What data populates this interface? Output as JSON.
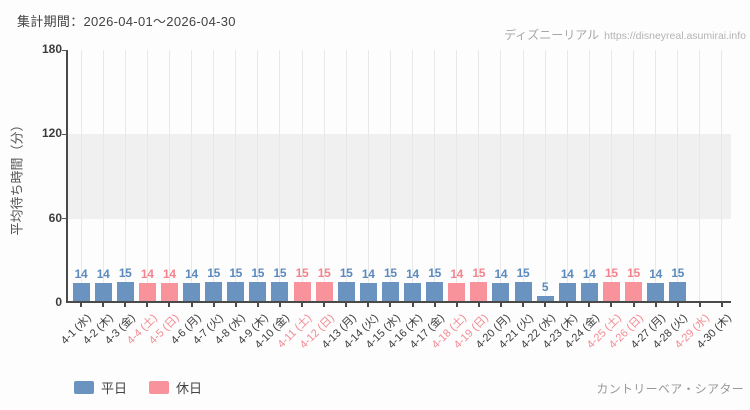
{
  "header": {
    "title": "集計期間：2026-04-01～2026-04-30",
    "site_name": "ディズニーリアル",
    "site_url": "https://disneyreal.asumirai.info"
  },
  "footer": {
    "attraction_name": "カントリーベア・シアター"
  },
  "chart_data": {
    "type": "bar",
    "title": "集計期間：2026-04-01～2026-04-30",
    "xlabel": "",
    "ylabel": "平均待ち時間（分）",
    "ylim": [
      0,
      180
    ],
    "yticks": [
      0,
      60,
      120,
      180
    ],
    "grid": "vertical-per-category",
    "legend_position": "bottom-left",
    "shaded_band": {
      "from": 60,
      "to": 120,
      "color": "#f0f0f0"
    },
    "colors": {
      "weekday_bar": "#6b93c0",
      "holiday_bar": "#f8939c",
      "weekday_value_label": "#5b8abd",
      "holiday_value_label": "#f5838e",
      "weekday_tick_label": "#3c3c3c",
      "holiday_tick_label": "#f28a93"
    },
    "legend": [
      {
        "key": "weekday",
        "label": "平日",
        "color": "#6b93c0"
      },
      {
        "key": "holiday",
        "label": "休日",
        "color": "#f8939c"
      }
    ],
    "points": [
      {
        "label": "4-1 (水)",
        "value": 14,
        "day_type": "weekday"
      },
      {
        "label": "4-2 (木)",
        "value": 14,
        "day_type": "weekday"
      },
      {
        "label": "4-3 (金)",
        "value": 15,
        "day_type": "weekday"
      },
      {
        "label": "4-4 (土)",
        "value": 14,
        "day_type": "holiday"
      },
      {
        "label": "4-5 (日)",
        "value": 14,
        "day_type": "holiday"
      },
      {
        "label": "4-6 (月)",
        "value": 14,
        "day_type": "weekday"
      },
      {
        "label": "4-7 (火)",
        "value": 15,
        "day_type": "weekday"
      },
      {
        "label": "4-8 (水)",
        "value": 15,
        "day_type": "weekday"
      },
      {
        "label": "4-9 (木)",
        "value": 15,
        "day_type": "weekday"
      },
      {
        "label": "4-10 (金)",
        "value": 15,
        "day_type": "weekday"
      },
      {
        "label": "4-11 (土)",
        "value": 15,
        "day_type": "holiday"
      },
      {
        "label": "4-12 (日)",
        "value": 15,
        "day_type": "holiday"
      },
      {
        "label": "4-13 (月)",
        "value": 15,
        "day_type": "weekday"
      },
      {
        "label": "4-14 (火)",
        "value": 14,
        "day_type": "weekday"
      },
      {
        "label": "4-15 (水)",
        "value": 15,
        "day_type": "weekday"
      },
      {
        "label": "4-16 (木)",
        "value": 14,
        "day_type": "weekday"
      },
      {
        "label": "4-17 (金)",
        "value": 15,
        "day_type": "weekday"
      },
      {
        "label": "4-18 (土)",
        "value": 14,
        "day_type": "holiday"
      },
      {
        "label": "4-19 (日)",
        "value": 15,
        "day_type": "holiday"
      },
      {
        "label": "4-20 (月)",
        "value": 14,
        "day_type": "weekday"
      },
      {
        "label": "4-21 (火)",
        "value": 15,
        "day_type": "weekday"
      },
      {
        "label": "4-22 (水)",
        "value": 5,
        "day_type": "weekday"
      },
      {
        "label": "4-23 (木)",
        "value": 14,
        "day_type": "weekday"
      },
      {
        "label": "4-24 (金)",
        "value": 14,
        "day_type": "weekday"
      },
      {
        "label": "4-25 (土)",
        "value": 15,
        "day_type": "holiday"
      },
      {
        "label": "4-26 (日)",
        "value": 15,
        "day_type": "holiday"
      },
      {
        "label": "4-27 (月)",
        "value": 14,
        "day_type": "weekday"
      },
      {
        "label": "4-28 (火)",
        "value": 15,
        "day_type": "weekday"
      },
      {
        "label": "4-29 (水)",
        "value": null,
        "day_type": "holiday"
      },
      {
        "label": "4-30 (木)",
        "value": null,
        "day_type": "weekday"
      }
    ]
  }
}
